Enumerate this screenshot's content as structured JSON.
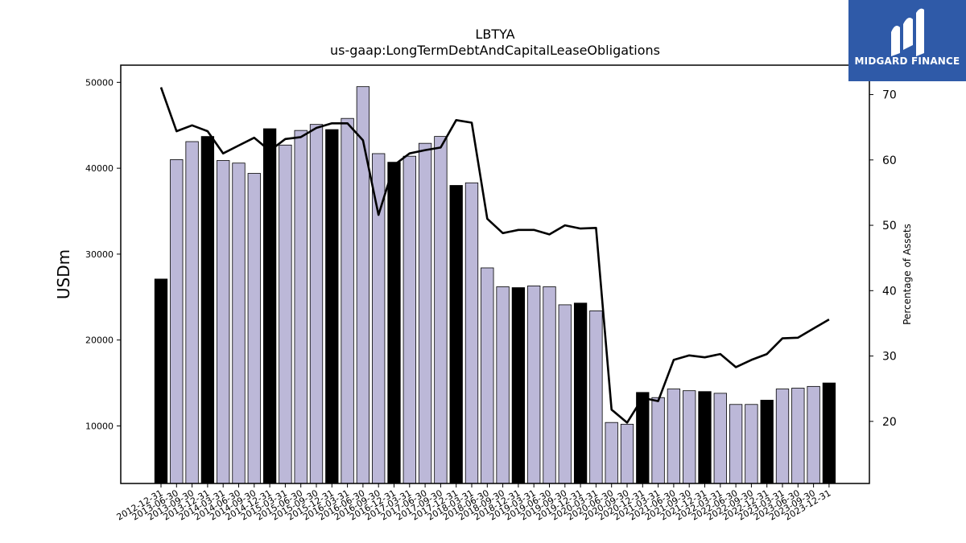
{
  "chart_data": {
    "type": "bar",
    "title": "LBTYA",
    "subtitle": "us-gaap:LongTermDebtAndCapitalLeaseObligations",
    "ylabel": "USDm",
    "y2label": "Percentage of Assets",
    "ylim": [
      3300,
      52000
    ],
    "y2lim": [
      10.5,
      74.5
    ],
    "yticks": [
      "10000",
      "20000",
      "30000",
      "40000",
      "50000"
    ],
    "y2ticks": [
      "20",
      "30",
      "40",
      "50",
      "60",
      "70"
    ],
    "categories": [
      "2012-12-31",
      "2013-06-30",
      "2013-09-30",
      "2013-12-31",
      "2014-03-31",
      "2014-06-30",
      "2014-09-30",
      "2014-12-31",
      "2015-03-31",
      "2015-06-30",
      "2015-09-30",
      "2015-12-31",
      "2016-03-31",
      "2016-06-30",
      "2016-09-30",
      "2016-12-31",
      "2017-03-31",
      "2017-06-30",
      "2017-09-30",
      "2017-12-31",
      "2018-03-31",
      "2018-06-30",
      "2018-09-30",
      "2018-12-31",
      "2019-03-31",
      "2019-06-30",
      "2019-09-30",
      "2019-12-31",
      "2020-03-31",
      "2020-06-30",
      "2020-09-30",
      "2020-12-31",
      "2021-03-31",
      "2021-06-30",
      "2021-09-30",
      "2021-12-31",
      "2022-03-31",
      "2022-06-30",
      "2022-09-30",
      "2022-12-31",
      "2023-03-31",
      "2023-06-30",
      "2023-09-30",
      "2023-12-31"
    ],
    "series": [
      {
        "type": "bar",
        "values": [
          27100,
          41000,
          43100,
          43700,
          40900,
          40600,
          39400,
          44600,
          42700,
          44400,
          45100,
          44500,
          45800,
          49500,
          41700,
          40700,
          41400,
          42900,
          43700,
          38000,
          38300,
          28400,
          26200,
          26100,
          26300,
          26200,
          24100,
          24300,
          23400,
          10400,
          10200,
          13900,
          13300,
          14300,
          14100,
          14000,
          13800,
          12500,
          12500,
          13000,
          14300,
          14400,
          14600,
          15000
        ],
        "year_end": [
          true,
          false,
          false,
          true,
          false,
          false,
          false,
          true,
          false,
          false,
          false,
          true,
          false,
          false,
          false,
          true,
          false,
          false,
          false,
          true,
          false,
          false,
          false,
          true,
          false,
          false,
          false,
          true,
          false,
          false,
          false,
          true,
          false,
          false,
          false,
          true,
          false,
          false,
          false,
          true,
          false,
          false,
          false,
          true
        ]
      },
      {
        "type": "line",
        "axis": "right",
        "values": [
          71.1,
          64.4,
          65.3,
          64.4,
          61.0,
          62.2,
          63.4,
          61.4,
          63.2,
          63.5,
          64.9,
          65.6,
          65.6,
          63.0,
          51.6,
          59.2,
          61.0,
          61.5,
          61.9,
          66.1,
          65.7,
          51.0,
          48.8,
          49.3,
          49.3,
          48.6,
          50.0,
          49.5,
          49.6,
          21.8,
          19.8,
          23.6,
          23.1,
          29.4,
          30.1,
          29.8,
          30.3,
          28.3,
          29.4,
          30.3,
          32.7,
          32.8,
          34.2,
          35.6
        ]
      }
    ],
    "colors": {
      "bar": "#bcb8d8",
      "bar_year_end": "#000000",
      "line": "#000000"
    }
  },
  "logo": {
    "text": "MIDGARD FINANCE",
    "bg": "#2f5aa8"
  }
}
